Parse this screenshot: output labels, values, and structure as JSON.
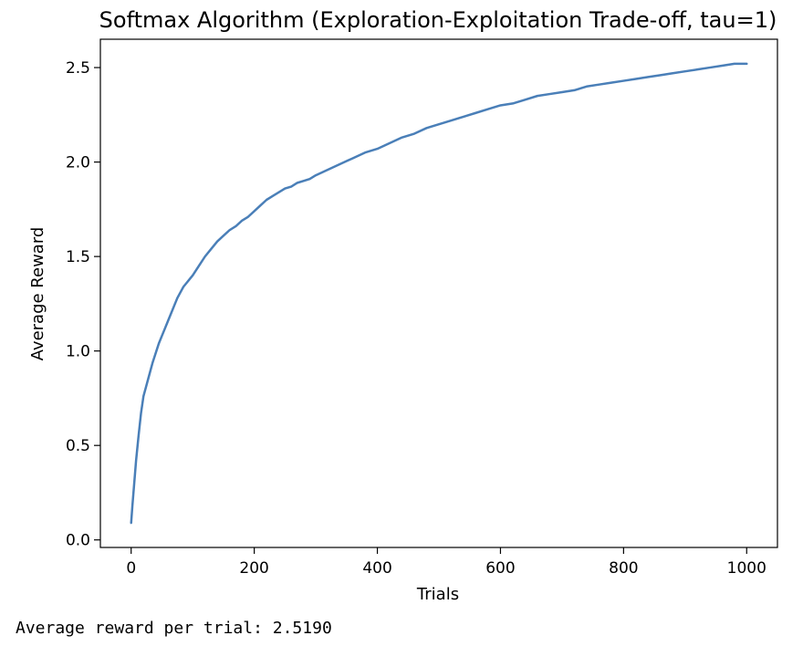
{
  "chart_data": {
    "type": "line",
    "title": "Softmax Algorithm (Exploration-Exploitation Trade-off, tau=1)",
    "xlabel": "Trials",
    "ylabel": "Average Reward",
    "xlim": [
      -50,
      1050
    ],
    "ylim": [
      -0.04,
      2.65
    ],
    "xticks": [
      0,
      200,
      400,
      600,
      800,
      1000
    ],
    "xtick_labels": [
      "0",
      "200",
      "400",
      "600",
      "800",
      "1000"
    ],
    "yticks": [
      0.0,
      0.5,
      1.0,
      1.5,
      2.0,
      2.5
    ],
    "ytick_labels": [
      "0.0",
      "0.5",
      "1.0",
      "1.5",
      "2.0",
      "2.5"
    ],
    "grid": false,
    "series": [
      {
        "color": "#4a7fb8",
        "x": [
          0,
          2,
          5,
          8,
          12,
          16,
          20,
          25,
          30,
          35,
          40,
          45,
          50,
          55,
          60,
          65,
          70,
          75,
          80,
          85,
          90,
          95,
          100,
          110,
          120,
          130,
          140,
          150,
          160,
          170,
          180,
          190,
          200,
          210,
          220,
          230,
          240,
          250,
          260,
          270,
          280,
          290,
          300,
          320,
          340,
          360,
          380,
          400,
          420,
          440,
          460,
          480,
          500,
          520,
          540,
          560,
          580,
          600,
          620,
          640,
          660,
          680,
          700,
          720,
          740,
          760,
          780,
          800,
          820,
          840,
          860,
          880,
          900,
          920,
          940,
          960,
          980,
          1000
        ],
        "y": [
          0.09,
          0.18,
          0.3,
          0.42,
          0.55,
          0.67,
          0.76,
          0.82,
          0.88,
          0.94,
          0.99,
          1.04,
          1.08,
          1.12,
          1.16,
          1.2,
          1.24,
          1.28,
          1.31,
          1.34,
          1.36,
          1.38,
          1.4,
          1.45,
          1.5,
          1.54,
          1.58,
          1.61,
          1.64,
          1.66,
          1.69,
          1.71,
          1.74,
          1.77,
          1.8,
          1.82,
          1.84,
          1.86,
          1.87,
          1.89,
          1.9,
          1.91,
          1.93,
          1.96,
          1.99,
          2.02,
          2.05,
          2.07,
          2.1,
          2.13,
          2.15,
          2.18,
          2.2,
          2.22,
          2.24,
          2.26,
          2.28,
          2.3,
          2.31,
          2.33,
          2.35,
          2.36,
          2.37,
          2.38,
          2.4,
          2.41,
          2.42,
          2.43,
          2.44,
          2.45,
          2.46,
          2.47,
          2.48,
          2.49,
          2.5,
          2.51,
          2.52,
          2.52
        ]
      }
    ]
  },
  "output": {
    "text": "Average reward per trial: 2.5190"
  }
}
